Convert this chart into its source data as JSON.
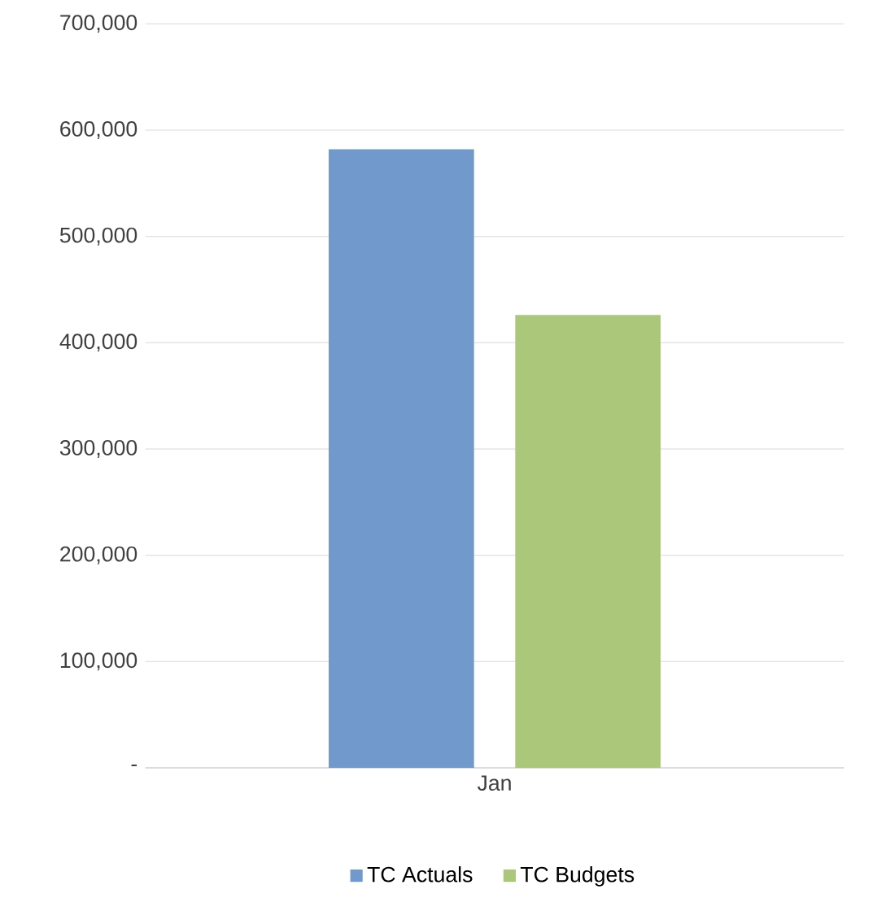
{
  "chart_data": {
    "type": "bar",
    "categories": [
      "Jan"
    ],
    "series": [
      {
        "name": "TC Actuals",
        "color": "#7199cc",
        "values": [
          582000
        ]
      },
      {
        "name": "TC Budgets",
        "color": "#abc77a",
        "values": [
          426000
        ]
      }
    ],
    "ylim": [
      0,
      700000
    ],
    "yticks": [
      {
        "value": 0,
        "label": "-"
      },
      {
        "value": 100000,
        "label": "100,000"
      },
      {
        "value": 200000,
        "label": "200,000"
      },
      {
        "value": 300000,
        "label": "300,000"
      },
      {
        "value": 400000,
        "label": "400,000"
      },
      {
        "value": 500000,
        "label": "500,000"
      },
      {
        "value": 600000,
        "label": "600,000"
      },
      {
        "value": 700000,
        "label": "700,000"
      }
    ],
    "grid": "y",
    "legend": "bottom"
  }
}
